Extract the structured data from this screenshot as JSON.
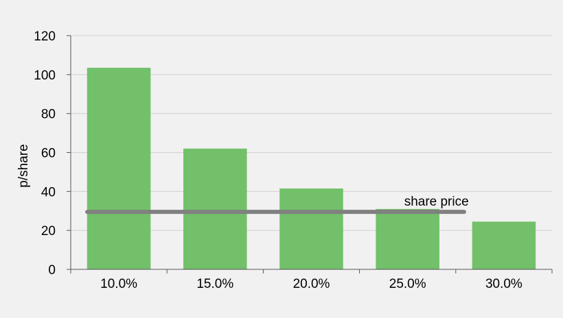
{
  "chart_data": {
    "type": "bar",
    "categories": [
      "10.0%",
      "15.0%",
      "20.0%",
      "25.0%",
      "30.0%"
    ],
    "values": [
      103.5,
      62,
      41.5,
      31,
      24.5
    ],
    "xlabel": "",
    "ylabel": "p/share",
    "ylim": [
      0,
      120
    ],
    "yticks": [
      0,
      20,
      40,
      60,
      80,
      100,
      120
    ],
    "grid": true,
    "legend": "none",
    "reference_line": {
      "label": "share price",
      "value": 29.5
    },
    "colors": {
      "bar": "#72c06a",
      "reference_line": "#808080",
      "grid": "#d0d0d0",
      "background": "#f1f1f1"
    }
  }
}
